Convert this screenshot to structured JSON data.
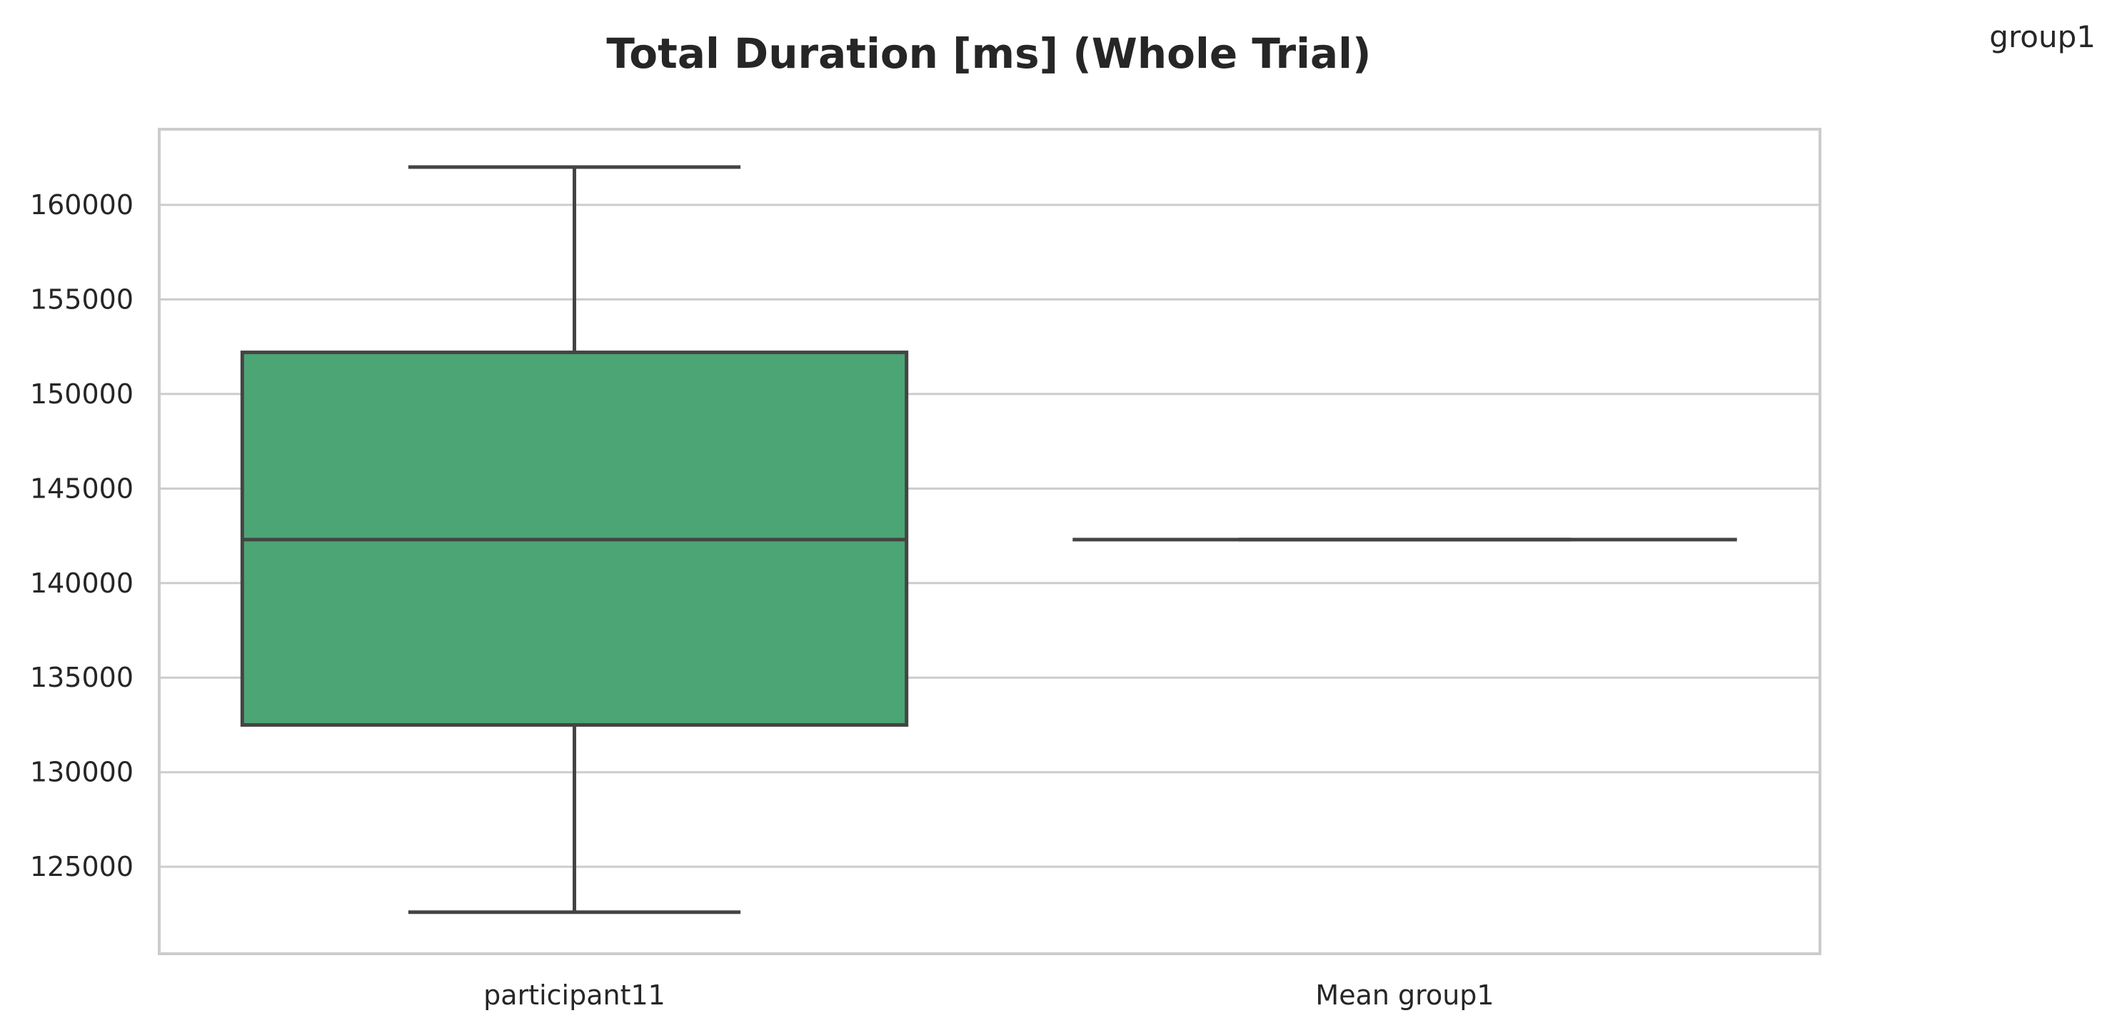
{
  "chart_data": {
    "type": "box",
    "title": "Total Duration [ms] (Whole Trial)",
    "corner_label": "group1",
    "xlabel": "",
    "ylabel": "",
    "ylim": [
      120400,
      164000
    ],
    "yticks": [
      125000,
      130000,
      135000,
      140000,
      145000,
      150000,
      155000,
      160000
    ],
    "grid": true,
    "categories": [
      "participant11",
      "Mean group1"
    ],
    "boxes": [
      {
        "category": "participant11",
        "whisker_low": 122600,
        "q1": 132500,
        "median": 142300,
        "q3": 152200,
        "whisker_high": 162000,
        "color": "#4ca574"
      },
      {
        "category": "Mean group1",
        "whisker_low": 142300,
        "q1": 142300,
        "median": 142300,
        "q3": 142300,
        "whisker_high": 142300,
        "color": "#4ca574"
      }
    ],
    "colors": {
      "box_fill": "#4ca574",
      "line": "#444444",
      "grid": "#cccccc",
      "spine": "#cccccc"
    }
  }
}
